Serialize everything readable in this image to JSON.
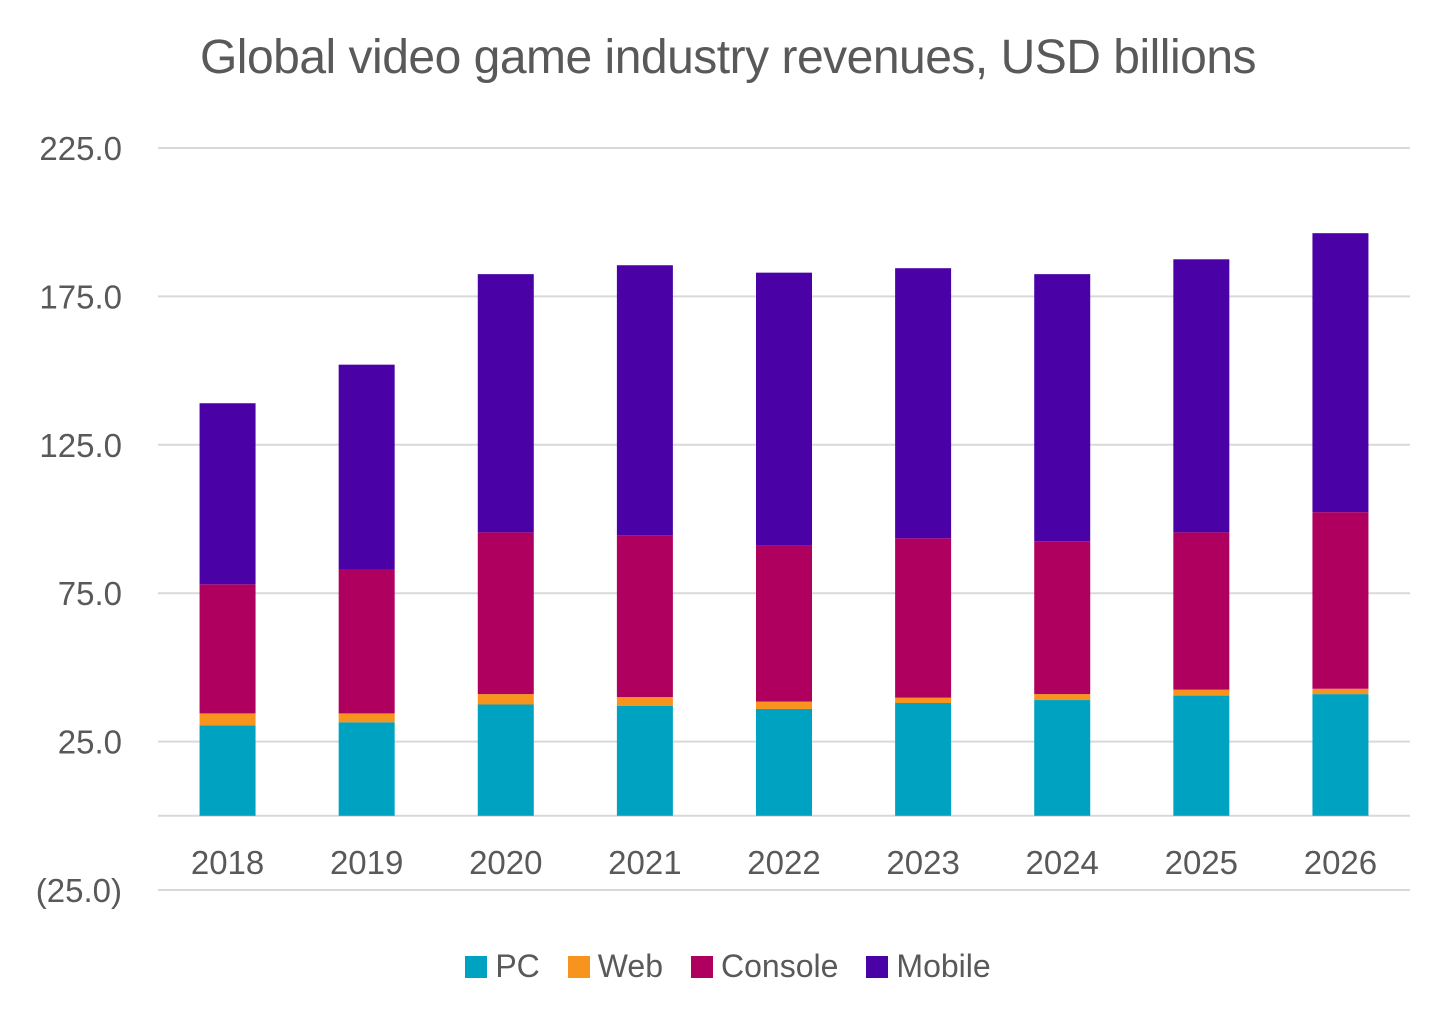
{
  "chart_data": {
    "type": "bar",
    "stacked": true,
    "title": "Global video game industry revenues, USD billions",
    "xlabel": "",
    "ylabel": "",
    "categories": [
      "2018",
      "2019",
      "2020",
      "2021",
      "2022",
      "2023",
      "2024",
      "2025",
      "2026"
    ],
    "ylim": [
      -25,
      225
    ],
    "yticks": [
      -25,
      25,
      75,
      125,
      175,
      225
    ],
    "ytick_labels": [
      "(25.0)",
      "25.0",
      "75.0",
      "125.0",
      "175.0",
      "225.0"
    ],
    "grid": true,
    "legend_position": "bottom",
    "series": [
      {
        "name": "PC",
        "color": "#00A2C1",
        "values": [
          30.5,
          31.5,
          37.5,
          37.0,
          36.0,
          38.0,
          39.0,
          40.5,
          41.0
        ]
      },
      {
        "name": "Web",
        "color": "#F7941D",
        "values": [
          4.0,
          3.0,
          3.5,
          3.0,
          2.5,
          1.8,
          2.0,
          2.0,
          1.8
        ]
      },
      {
        "name": "Console",
        "color": "#B0005F",
        "values": [
          43.5,
          48.5,
          54.5,
          54.5,
          52.5,
          53.7,
          51.5,
          53.0,
          59.5
        ]
      },
      {
        "name": "Mobile",
        "color": "#4A02A6",
        "values": [
          61.0,
          69.0,
          87.0,
          91.0,
          92.0,
          91.0,
          90.0,
          92.0,
          94.0
        ]
      }
    ]
  }
}
